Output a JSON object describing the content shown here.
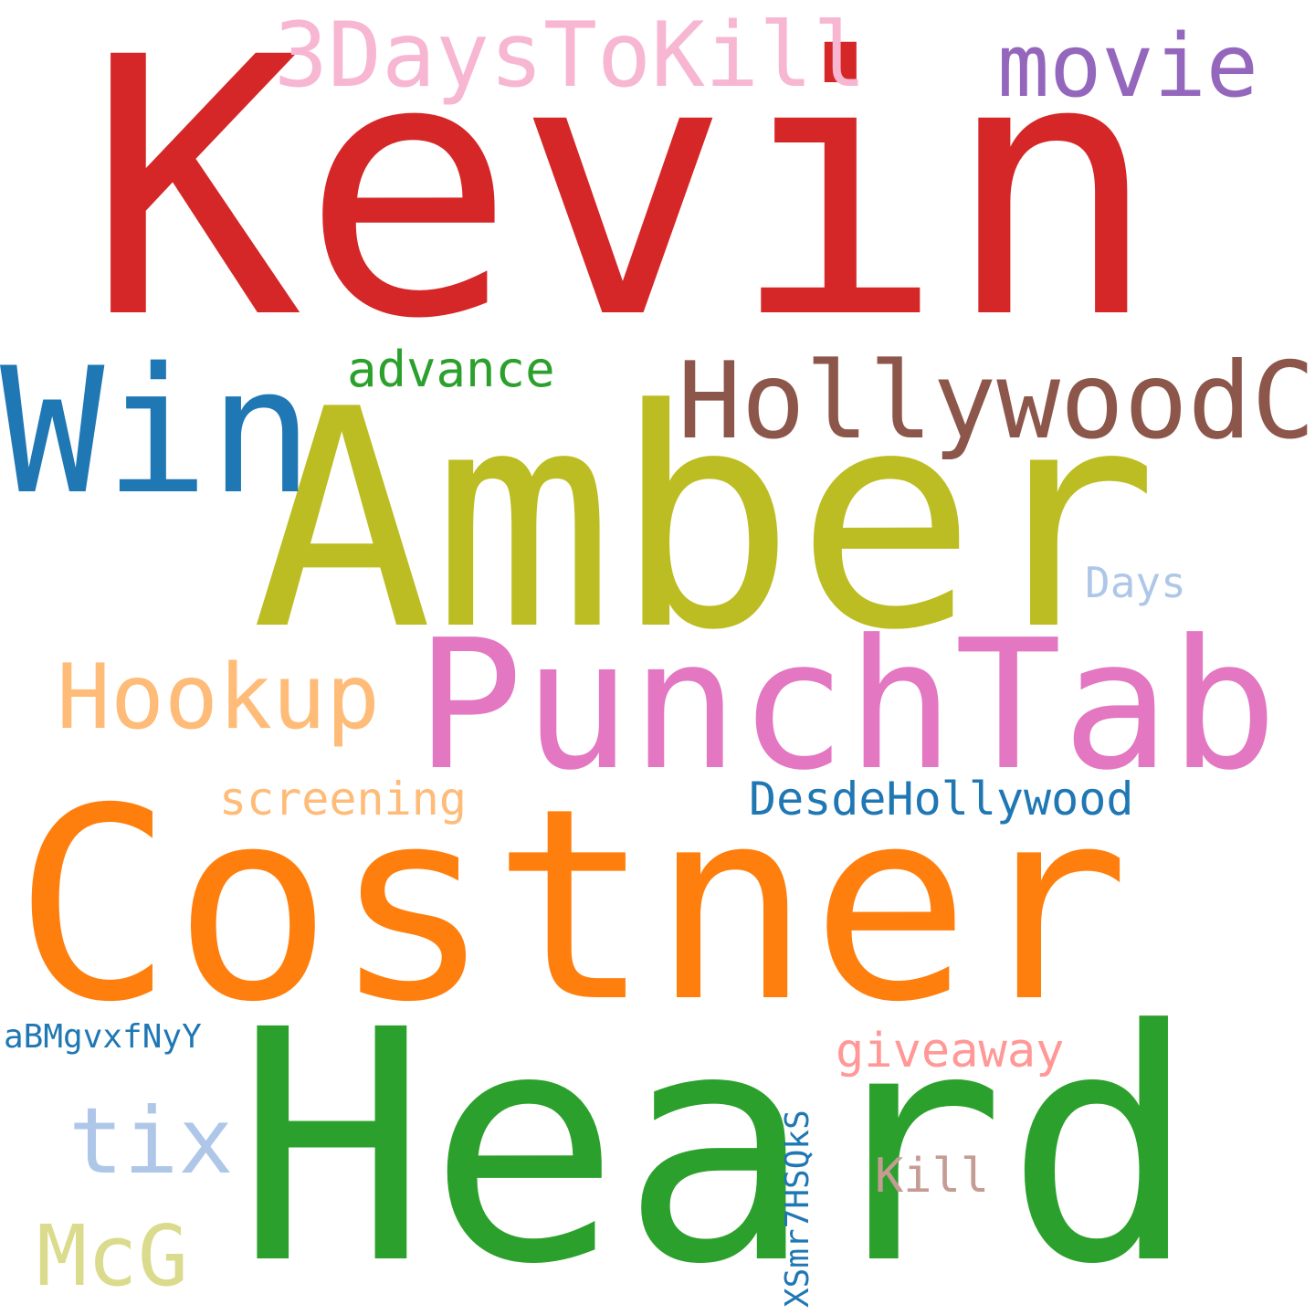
{
  "words": [
    {
      "text": "Kevin",
      "color": "#d62728"
    },
    {
      "text": "Amber",
      "color": "#bcbd22"
    },
    {
      "text": "Costner",
      "color": "#ff7f0e"
    },
    {
      "text": "Heard",
      "color": "#2ca02c"
    },
    {
      "text": "PunchTab",
      "color": "#e377c2"
    },
    {
      "text": "Win",
      "color": "#1f77b4"
    },
    {
      "text": "HollywoodChi",
      "color": "#8c564b"
    },
    {
      "text": "3DaysToKill",
      "color": "#f7b6d2"
    },
    {
      "text": "movie",
      "color": "#9467bd"
    },
    {
      "text": "Hookup",
      "color": "#ffbb78"
    },
    {
      "text": "advance",
      "color": "#2ca02c"
    },
    {
      "text": "Days",
      "color": "#aec7e8"
    },
    {
      "text": "screening",
      "color": "#ffbb78"
    },
    {
      "text": "DesdeHollywood",
      "color": "#1f77b4"
    },
    {
      "text": "tix",
      "color": "#aec7e8"
    },
    {
      "text": "McG",
      "color": "#dbdb8d"
    },
    {
      "text": "giveaway",
      "color": "#ff9896"
    },
    {
      "text": "Kill",
      "color": "#c49c94"
    },
    {
      "text": "aBMgvxfNyY",
      "color": "#1f77b4"
    },
    {
      "text": "XSmr7HSQkS",
      "color": "#1f77b4"
    }
  ]
}
